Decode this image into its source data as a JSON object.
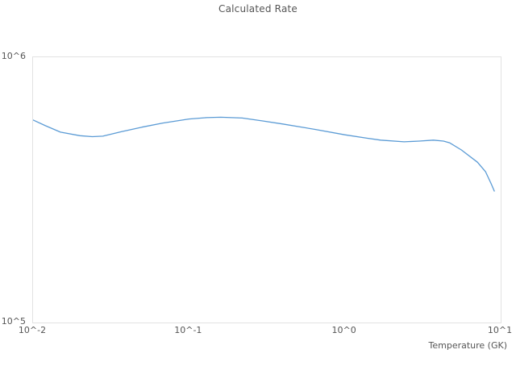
{
  "chart_data": {
    "type": "line",
    "title": "Calculated Rate",
    "xlabel": "Temperature (GK)",
    "ylabel": "",
    "x_scale": "log",
    "y_scale": "log",
    "xlim": [
      0.01,
      10
    ],
    "ylim": [
      100000,
      1000000
    ],
    "x_ticks": [
      0.01,
      0.1,
      1,
      10
    ],
    "x_tick_labels": [
      "10^-2",
      "10^-1",
      "10^0",
      "10^1"
    ],
    "y_ticks": [
      100000,
      1000000
    ],
    "y_tick_labels": [
      "10^5",
      "10^6"
    ],
    "grid": false,
    "legend": "none",
    "line_color": "#5b9bd5",
    "border_color": "#e2e2e2",
    "series": [
      {
        "name": "Calculated Rate",
        "points": [
          [
            0.01,
            580000
          ],
          [
            0.012,
            552000
          ],
          [
            0.015,
            522000
          ],
          [
            0.02,
            506000
          ],
          [
            0.024,
            502000
          ],
          [
            0.028,
            504000
          ],
          [
            0.037,
            524000
          ],
          [
            0.05,
            545000
          ],
          [
            0.068,
            565000
          ],
          [
            0.1,
            585000
          ],
          [
            0.13,
            592000
          ],
          [
            0.16,
            594000
          ],
          [
            0.22,
            590000
          ],
          [
            0.3,
            575000
          ],
          [
            0.4,
            560000
          ],
          [
            0.65,
            534000
          ],
          [
            1.0,
            510000
          ],
          [
            1.4,
            495000
          ],
          [
            1.7,
            487000
          ],
          [
            2.4,
            480000
          ],
          [
            3.0,
            483000
          ],
          [
            3.7,
            487000
          ],
          [
            4.3,
            483000
          ],
          [
            4.7,
            476000
          ],
          [
            5.6,
            447000
          ],
          [
            7.1,
            402000
          ],
          [
            8.0,
            370000
          ],
          [
            8.7,
            333000
          ],
          [
            9.1,
            313000
          ]
        ]
      }
    ]
  }
}
